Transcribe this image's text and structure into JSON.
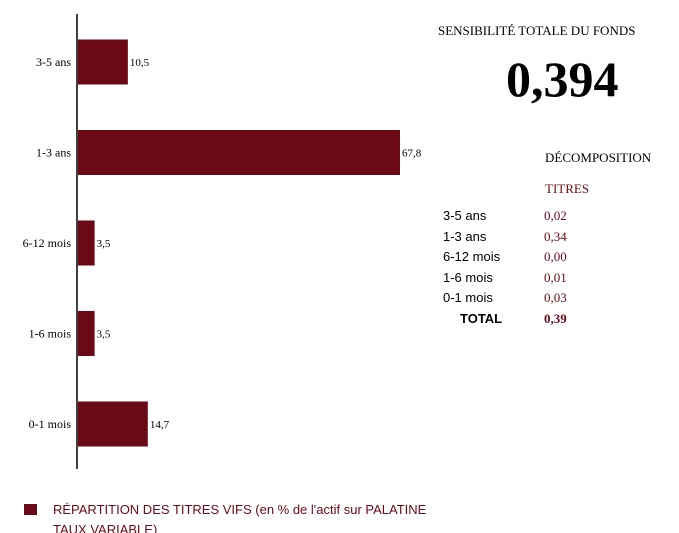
{
  "chart_data": {
    "type": "bar",
    "orientation": "horizontal",
    "categories": [
      "3-5 ans",
      "1-3 ans",
      "6-12 mois",
      "1-6 mois",
      "0-1 mois"
    ],
    "values": [
      10.5,
      67.8,
      3.5,
      3.5,
      14.7
    ],
    "value_labels": [
      "10,5",
      "67,8",
      "3,5",
      "3,5",
      "14,7"
    ],
    "bar_color": "#6b0a16",
    "legend": {
      "placement": "bottom-left",
      "entries": [
        "RÉPARTITION DES TITRES VIFS  (en % de l'actif sur PALATINE TAUX VARIABLE)"
      ]
    },
    "grid": false
  },
  "sensitivity": {
    "title": "SENSIBILITÉ TOTALE DU FONDS",
    "value": "0,394"
  },
  "decomposition": {
    "title": "DÉCOMPOSITION",
    "column_header": "TITRES",
    "rows": [
      {
        "label": "3-5 ans",
        "value": "0,02"
      },
      {
        "label": "1-3 ans",
        "value": "0,34"
      },
      {
        "label": "6-12 mois",
        "value": "0,00"
      },
      {
        "label": "1-6 mois",
        "value": "0,01"
      },
      {
        "label": "0-1 mois",
        "value": "0,03"
      }
    ],
    "total_label": "TOTAL",
    "total_value": "0,39"
  }
}
